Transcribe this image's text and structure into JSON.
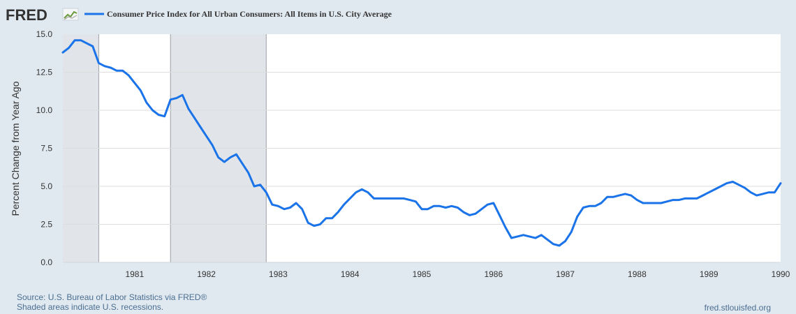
{
  "brand": {
    "logo_text": "FRED",
    "logo_icon": "sparkline-chart-icon"
  },
  "colors": {
    "background": "#e1e9f0",
    "plot_background": "#ffffff",
    "series": "#1a73e8",
    "recession_shade": "#e1e5e9",
    "gridline": "#dddddd",
    "footer_text": "#4a6e91"
  },
  "footer": {
    "source": "Source: U.S. Bureau of Labor Statistics via FRED®",
    "shading_note": "Shaded areas indicate U.S. recessions.",
    "site": "fred.stlouisfed.org"
  },
  "chart_data": {
    "type": "line",
    "title": "",
    "ylabel": "Percent Change from Year Ago",
    "xlabel": "",
    "x_domain": [
      "1980-01",
      "1990-01"
    ],
    "ylim": [
      0,
      15
    ],
    "yticks": [
      "0.0",
      "2.5",
      "5.0",
      "7.5",
      "10.0",
      "12.5",
      "15.0"
    ],
    "xticks": [
      "1981",
      "1982",
      "1983",
      "1984",
      "1985",
      "1986",
      "1987",
      "1988",
      "1989",
      "1990"
    ],
    "grid": true,
    "legend_position": "top",
    "recessions": [
      {
        "start": "1980-01",
        "end": "1980-07"
      },
      {
        "start": "1981-07",
        "end": "1982-11"
      }
    ],
    "series": [
      {
        "name": "Consumer Price Index for All Urban Consumers: All Items in U.S. City Average",
        "x": [
          "1980-01",
          "1980-02",
          "1980-03",
          "1980-04",
          "1980-05",
          "1980-06",
          "1980-07",
          "1980-08",
          "1980-09",
          "1980-10",
          "1980-11",
          "1980-12",
          "1981-01",
          "1981-02",
          "1981-03",
          "1981-04",
          "1981-05",
          "1981-06",
          "1981-07",
          "1981-08",
          "1981-09",
          "1981-10",
          "1981-11",
          "1981-12",
          "1982-01",
          "1982-02",
          "1982-03",
          "1982-04",
          "1982-05",
          "1982-06",
          "1982-07",
          "1982-08",
          "1982-09",
          "1982-10",
          "1982-11",
          "1982-12",
          "1983-01",
          "1983-02",
          "1983-03",
          "1983-04",
          "1983-05",
          "1983-06",
          "1983-07",
          "1983-08",
          "1983-09",
          "1983-10",
          "1983-11",
          "1983-12",
          "1984-01",
          "1984-02",
          "1984-03",
          "1984-04",
          "1984-05",
          "1984-06",
          "1984-07",
          "1984-08",
          "1984-09",
          "1984-10",
          "1984-11",
          "1984-12",
          "1985-01",
          "1985-02",
          "1985-03",
          "1985-04",
          "1985-05",
          "1985-06",
          "1985-07",
          "1985-08",
          "1985-09",
          "1985-10",
          "1985-11",
          "1985-12",
          "1986-01",
          "1986-02",
          "1986-03",
          "1986-04",
          "1986-05",
          "1986-06",
          "1986-07",
          "1986-08",
          "1986-09",
          "1986-10",
          "1986-11",
          "1986-12",
          "1987-01",
          "1987-02",
          "1987-03",
          "1987-04",
          "1987-05",
          "1987-06",
          "1987-07",
          "1987-08",
          "1987-09",
          "1987-10",
          "1987-11",
          "1987-12",
          "1988-01",
          "1988-02",
          "1988-03",
          "1988-04",
          "1988-05",
          "1988-06",
          "1988-07",
          "1988-08",
          "1988-09",
          "1988-10",
          "1988-11",
          "1988-12",
          "1989-01",
          "1989-02",
          "1989-03",
          "1989-04",
          "1989-05",
          "1989-06",
          "1989-07",
          "1989-08",
          "1989-09",
          "1989-10",
          "1989-11",
          "1989-12",
          "1990-01"
        ],
        "values": [
          13.8,
          14.1,
          14.6,
          14.6,
          14.4,
          14.2,
          13.1,
          12.9,
          12.8,
          12.6,
          12.6,
          12.3,
          11.8,
          11.3,
          10.5,
          10.0,
          9.7,
          9.6,
          10.7,
          10.8,
          11.0,
          10.1,
          9.5,
          8.9,
          8.3,
          7.7,
          6.9,
          6.6,
          6.9,
          7.1,
          6.5,
          5.9,
          5.0,
          5.1,
          4.6,
          3.8,
          3.7,
          3.5,
          3.6,
          3.9,
          3.5,
          2.6,
          2.4,
          2.5,
          2.9,
          2.9,
          3.3,
          3.8,
          4.2,
          4.6,
          4.8,
          4.6,
          4.2,
          4.2,
          4.2,
          4.2,
          4.2,
          4.2,
          4.1,
          4.0,
          3.5,
          3.5,
          3.7,
          3.7,
          3.6,
          3.7,
          3.6,
          3.3,
          3.1,
          3.2,
          3.5,
          3.8,
          3.9,
          3.1,
          2.3,
          1.6,
          1.7,
          1.8,
          1.7,
          1.6,
          1.8,
          1.5,
          1.2,
          1.1,
          1.4,
          2.0,
          3.0,
          3.6,
          3.7,
          3.7,
          3.9,
          4.3,
          4.3,
          4.4,
          4.5,
          4.4,
          4.1,
          3.9,
          3.9,
          3.9,
          3.9,
          4.0,
          4.1,
          4.1,
          4.2,
          4.2,
          4.2,
          4.4,
          4.6,
          4.8,
          5.0,
          5.2,
          5.3,
          5.1,
          4.9,
          4.6,
          4.4,
          4.5,
          4.6,
          4.6,
          5.2
        ]
      }
    ]
  }
}
